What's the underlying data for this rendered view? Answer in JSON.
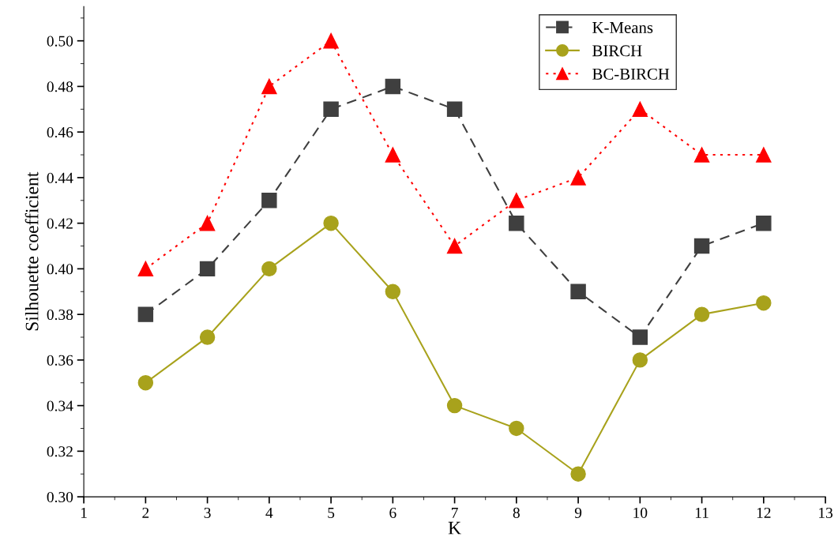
{
  "chart_data": {
    "type": "line",
    "xlabel": "K",
    "ylabel": "Silhouette coefficient",
    "x": [
      2,
      3,
      4,
      5,
      6,
      7,
      8,
      9,
      10,
      11,
      12
    ],
    "series": [
      {
        "name": "K-Means",
        "color": "#3f3f3f",
        "marker": "square",
        "line_style": "dashed",
        "values": [
          0.38,
          0.4,
          0.43,
          0.47,
          0.48,
          0.47,
          0.42,
          0.39,
          0.37,
          0.41,
          0.42
        ]
      },
      {
        "name": "BIRCH",
        "color": "#a8a21c",
        "marker": "circle",
        "line_style": "solid",
        "values": [
          0.35,
          0.37,
          0.4,
          0.42,
          0.39,
          0.34,
          0.33,
          0.31,
          0.36,
          0.38,
          0.385
        ]
      },
      {
        "name": "BC-BIRCH",
        "color": "#ff0000",
        "marker": "triangle",
        "line_style": "dotted",
        "values": [
          0.4,
          0.42,
          0.48,
          0.5,
          0.45,
          0.41,
          0.43,
          0.44,
          0.47,
          0.45,
          0.45
        ]
      }
    ],
    "xlim": [
      1,
      13
    ],
    "xticks": [
      1,
      2,
      3,
      4,
      5,
      6,
      7,
      8,
      9,
      10,
      11,
      12,
      13
    ],
    "ylim": [
      0.3,
      0.515
    ],
    "yticks": [
      {
        "value": 0.3,
        "label": "0.30"
      },
      {
        "value": 0.32,
        "label": "0.32"
      },
      {
        "value": 0.34,
        "label": "0.34"
      },
      {
        "value": 0.36,
        "label": "0.36"
      },
      {
        "value": 0.38,
        "label": "0.38"
      },
      {
        "value": 0.4,
        "label": "0.40"
      },
      {
        "value": 0.42,
        "label": "0.42"
      },
      {
        "value": 0.44,
        "label": "0.44"
      },
      {
        "value": 0.46,
        "label": "0.46"
      },
      {
        "value": 0.48,
        "label": "0.48"
      },
      {
        "value": 0.5,
        "label": "0.50"
      }
    ],
    "grid": false,
    "legend": "top right"
  }
}
